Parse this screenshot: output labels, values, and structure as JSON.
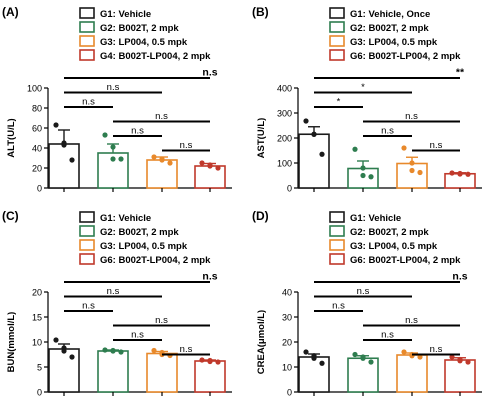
{
  "figure": {
    "title": ""
  },
  "chart_data": [
    {
      "type": "bar",
      "panel_label": "(A)",
      "ylabel": "ALT(U/L)",
      "ylim": [
        0,
        100
      ],
      "yticks": [
        "0",
        "20",
        "40",
        "60",
        "80",
        "100"
      ],
      "ytick_values": [
        0,
        20,
        40,
        60,
        80,
        100
      ],
      "legend": [
        {
          "label": "G1: Vehicle",
          "color": "#1a1a1a"
        },
        {
          "label": "G2: B002T, 2 mpk",
          "color": "#2e7d4f"
        },
        {
          "label": "G3: LP004, 0.5 mpk",
          "color": "#e8892b"
        },
        {
          "label": "G4: B002T-LP004, 2 mpk",
          "color": "#c0392b"
        }
      ],
      "series": [
        {
          "name": "G1: Vehicle",
          "value": 44,
          "error": 14,
          "points": [
            63,
            45,
            43,
            28
          ],
          "color": "#1a1a1a"
        },
        {
          "name": "G2: B002T, 2 mpk",
          "value": 35,
          "error": 9,
          "points": [
            53,
            41,
            29,
            29
          ],
          "color": "#2e7d4f"
        },
        {
          "name": "G3: LP004, 0.5 mpk",
          "value": 28,
          "error": 3,
          "points": [
            31,
            29,
            28,
            25
          ],
          "color": "#e8892b"
        },
        {
          "name": "G4: B002T-LP004, 2 mpk",
          "value": 22,
          "error": 2.5,
          "points": [
            25,
            23,
            22,
            20
          ],
          "color": "#c0392b"
        }
      ],
      "comparisons": [
        {
          "from": 0,
          "to": 1,
          "label": "n.s"
        },
        {
          "from": 0,
          "to": 2,
          "label": "n.s"
        },
        {
          "from": 0,
          "to": 3,
          "label": "n.s"
        },
        {
          "from": 1,
          "to": 2,
          "label": "n.s"
        },
        {
          "from": 1,
          "to": 3,
          "label": "n.s"
        },
        {
          "from": 2,
          "to": 3,
          "label": "n.s"
        }
      ]
    },
    {
      "type": "bar",
      "panel_label": "(B)",
      "ylabel": "AST(U/L)",
      "ylim": [
        0,
        400
      ],
      "yticks": [
        "0",
        "100",
        "200",
        "300",
        "400"
      ],
      "ytick_values": [
        0,
        100,
        200,
        300,
        400
      ],
      "legend": [
        {
          "label": "G1: Vehicle, Once",
          "color": "#1a1a1a"
        },
        {
          "label": "G2: B002T, 2 mpk",
          "color": "#2e7d4f"
        },
        {
          "label": "G3: LP004, 0.5 mpk",
          "color": "#e8892b"
        },
        {
          "label": "G6: B002T-LP004, 2 mpk",
          "color": "#c0392b"
        }
      ],
      "series": [
        {
          "name": "G1: Vehicle, Once",
          "value": 215,
          "error": 30,
          "points": [
            268,
            215,
            215,
            135
          ],
          "color": "#1a1a1a"
        },
        {
          "name": "G2: B002T, 2 mpk",
          "value": 78,
          "error": 30,
          "points": [
            155,
            80,
            50,
            45
          ],
          "color": "#2e7d4f"
        },
        {
          "name": "G3: LP004, 0.5 mpk",
          "value": 98,
          "error": 25,
          "points": [
            160,
            100,
            70,
            62
          ],
          "color": "#e8892b"
        },
        {
          "name": "G6: B002T-LP004, 2 mpk",
          "value": 57,
          "error": 4,
          "points": [
            60,
            58,
            56,
            55
          ],
          "color": "#c0392b"
        }
      ],
      "comparisons": [
        {
          "from": 0,
          "to": 1,
          "label": "*"
        },
        {
          "from": 0,
          "to": 2,
          "label": "*"
        },
        {
          "from": 0,
          "to": 3,
          "label": "**"
        },
        {
          "from": 1,
          "to": 2,
          "label": "n.s"
        },
        {
          "from": 1,
          "to": 3,
          "label": "n.s"
        },
        {
          "from": 2,
          "to": 3,
          "label": "n.s"
        }
      ]
    },
    {
      "type": "bar",
      "panel_label": "(C)",
      "ylabel": "BUN(mmol/L)",
      "ylim": [
        0,
        20
      ],
      "yticks": [
        "0",
        "5",
        "10",
        "15",
        "20"
      ],
      "ytick_values": [
        0,
        5,
        10,
        15,
        20
      ],
      "legend": [
        {
          "label": "G1: Vehicle",
          "color": "#1a1a1a"
        },
        {
          "label": "G2: B002T, 2 mpk",
          "color": "#2e7d4f"
        },
        {
          "label": "G3: LP004, 0.5 mpk",
          "color": "#e8892b"
        },
        {
          "label": "G6: B002T-LP004, 2 mpk",
          "color": "#c0392b"
        }
      ],
      "series": [
        {
          "name": "G1: Vehicle",
          "value": 8.6,
          "error": 1.0,
          "points": [
            10.4,
            8.8,
            8.2,
            7.0
          ],
          "color": "#1a1a1a"
        },
        {
          "name": "G2: B002T, 2 mpk",
          "value": 8.2,
          "error": 0.2,
          "points": [
            8.4,
            8.3,
            8.2,
            8.0
          ],
          "color": "#2e7d4f"
        },
        {
          "name": "G3: LP004, 0.5 mpk",
          "value": 7.7,
          "error": 0.4,
          "points": [
            8.3,
            7.9,
            7.5,
            7.3
          ],
          "color": "#e8892b"
        },
        {
          "name": "G6: B002T-LP004, 2 mpk",
          "value": 6.2,
          "error": 0.2,
          "points": [
            6.4,
            6.3,
            6.1,
            6.0
          ],
          "color": "#c0392b"
        }
      ],
      "comparisons": [
        {
          "from": 0,
          "to": 1,
          "label": "n.s"
        },
        {
          "from": 0,
          "to": 2,
          "label": "n.s"
        },
        {
          "from": 0,
          "to": 3,
          "label": "n.s"
        },
        {
          "from": 1,
          "to": 2,
          "label": "n.s"
        },
        {
          "from": 1,
          "to": 3,
          "label": "n.s"
        },
        {
          "from": 2,
          "to": 3,
          "label": "n.s"
        }
      ]
    },
    {
      "type": "bar",
      "panel_label": "(D)",
      "ylabel": "CREA(μmol/L)",
      "ylim": [
        0,
        40
      ],
      "yticks": [
        "0",
        "10",
        "20",
        "30",
        "40"
      ],
      "ytick_values": [
        0,
        10,
        20,
        30,
        40
      ],
      "legend": [
        {
          "label": "G1: Vehicle",
          "color": "#1a1a1a"
        },
        {
          "label": "G2: B002T, 2 mpk",
          "color": "#2e7d4f"
        },
        {
          "label": "G3: LP004, 0.5 mpk",
          "color": "#e8892b"
        },
        {
          "label": "G6: B002T-LP004, 2 mpk",
          "color": "#c0392b"
        }
      ],
      "series": [
        {
          "name": "G1: Vehicle",
          "value": 14.0,
          "error": 1.2,
          "points": [
            16,
            14.5,
            13.5,
            11.5
          ],
          "color": "#1a1a1a"
        },
        {
          "name": "G2: B002T, 2 mpk",
          "value": 13.5,
          "error": 1.0,
          "points": [
            15,
            14,
            13.5,
            12
          ],
          "color": "#2e7d4f"
        },
        {
          "name": "G3: LP004, 0.5 mpk",
          "value": 14.8,
          "error": 0.8,
          "points": [
            16,
            15,
            14.5,
            14
          ],
          "color": "#e8892b"
        },
        {
          "name": "G6: B002T-LP004, 2 mpk",
          "value": 12.8,
          "error": 0.9,
          "points": [
            14,
            13,
            12.5,
            12
          ],
          "color": "#c0392b"
        }
      ],
      "comparisons": [
        {
          "from": 0,
          "to": 1,
          "label": "n.s"
        },
        {
          "from": 0,
          "to": 2,
          "label": "n.s"
        },
        {
          "from": 0,
          "to": 3,
          "label": "n.s"
        },
        {
          "from": 1,
          "to": 2,
          "label": "n.s"
        },
        {
          "from": 1,
          "to": 3,
          "label": "n.s"
        },
        {
          "from": 2,
          "to": 3,
          "label": "n.s"
        }
      ]
    }
  ]
}
